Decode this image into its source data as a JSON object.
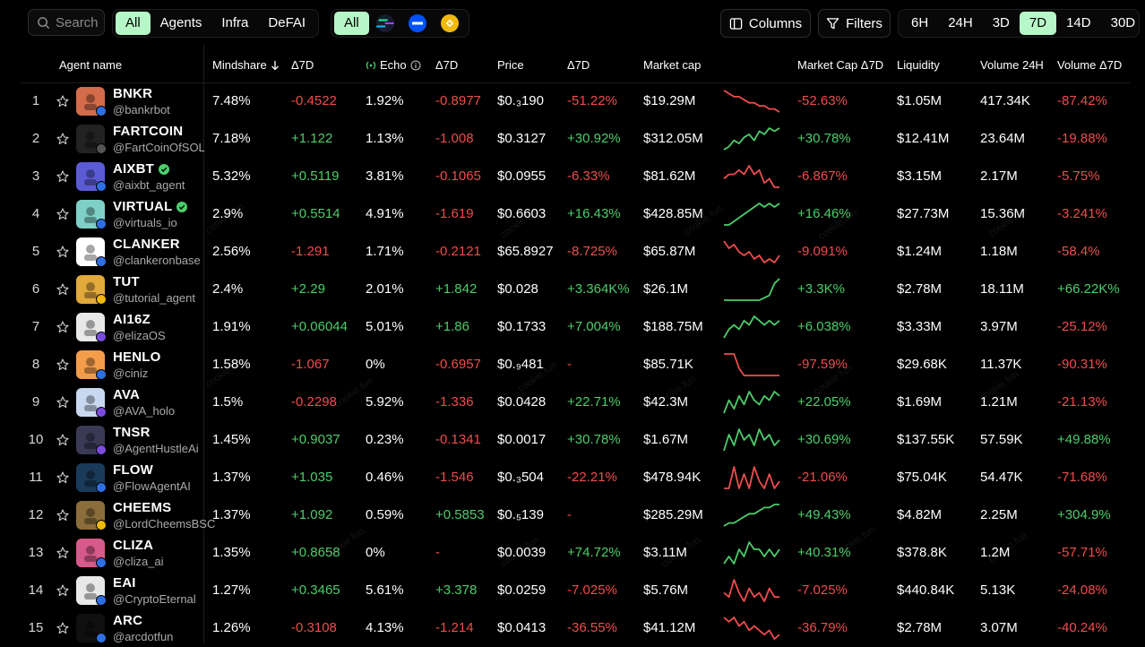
{
  "search": {
    "placeholder": "Search"
  },
  "categories": [
    {
      "label": "All",
      "active": true
    },
    {
      "label": "Agents",
      "active": false
    },
    {
      "label": "Infra",
      "active": false
    },
    {
      "label": "DeFAI",
      "active": false
    }
  ],
  "chains": {
    "all_label": "All",
    "icons": [
      "solana-icon",
      "base-icon",
      "bnb-icon"
    ]
  },
  "toolbar": {
    "columns_label": "Columns",
    "filters_label": "Filters"
  },
  "timeframes": [
    {
      "label": "6H",
      "active": false
    },
    {
      "label": "24H",
      "active": false
    },
    {
      "label": "3D",
      "active": false
    },
    {
      "label": "7D",
      "active": true
    },
    {
      "label": "14D",
      "active": false
    },
    {
      "label": "30D",
      "active": false
    }
  ],
  "headers": {
    "agent_name": "Agent name",
    "mindshare": "Mindshare",
    "mindshare_delta": "Δ7D",
    "echo": "Echo",
    "echo_delta": "Δ7D",
    "price": "Price",
    "price_delta": "Δ7D",
    "market_cap": "Market cap",
    "market_cap_delta": "Market Cap Δ7D",
    "liquidity": "Liquidity",
    "volume": "Volume 24H",
    "volume_delta": "Volume Δ7D"
  },
  "watermark": "cookie.fun",
  "colors": {
    "accent": "#b7f7c7",
    "positive": "#4ccd6a",
    "negative": "#ee4d4d"
  },
  "rows": [
    {
      "rank": "1",
      "name": "BNKR",
      "handle": "@bankrbot",
      "verified": false,
      "mindshare": "7.48%",
      "mindshare_delta": "-0.4522",
      "echo": "1.92%",
      "echo_delta": "-0.8977",
      "price": "$0.₃190",
      "price_delta": "-51.22%",
      "market_cap": "$19.29M",
      "mcap_delta": "-52.63%",
      "liquidity": "$1.05M",
      "volume": "417.34K",
      "volume_delta": "-87.42%",
      "spark": [
        10,
        9,
        8,
        8,
        7,
        6,
        6,
        5,
        5,
        4,
        4,
        3
      ],
      "avatar_color": "#d46b4a",
      "badge_color": "#2f6fe6"
    },
    {
      "rank": "2",
      "name": "FARTCOIN",
      "handle": "@FartCoinOfSOL",
      "verified": false,
      "mindshare": "7.18%",
      "mindshare_delta": "+1.122",
      "echo": "1.13%",
      "echo_delta": "-1.008",
      "price": "$0.3127",
      "price_delta": "+30.92%",
      "market_cap": "$312.05M",
      "mcap_delta": "+30.78%",
      "liquidity": "$12.41M",
      "volume": "23.64M",
      "volume_delta": "-19.88%",
      "spark": [
        3,
        4,
        6,
        5,
        7,
        8,
        6,
        9,
        8,
        10,
        9,
        10
      ],
      "avatar_color": "#222222",
      "badge_color": "#555555"
    },
    {
      "rank": "3",
      "name": "AIXBT",
      "handle": "@aixbt_agent",
      "verified": true,
      "mindshare": "5.32%",
      "mindshare_delta": "+0.5119",
      "echo": "3.81%",
      "echo_delta": "-0.1065",
      "price": "$0.0955",
      "price_delta": "-6.33%",
      "market_cap": "$81.62M",
      "mcap_delta": "-6.867%",
      "liquidity": "$3.15M",
      "volume": "2.17M",
      "volume_delta": "-5.75%",
      "spark": [
        6,
        7,
        7,
        8,
        7,
        9,
        7,
        8,
        5,
        6,
        4,
        4
      ],
      "avatar_color": "#5b5bd6",
      "badge_color": "#2f6fe6"
    },
    {
      "rank": "4",
      "name": "VIRTUAL",
      "handle": "@virtuals_io",
      "verified": true,
      "mindshare": "2.9%",
      "mindshare_delta": "+0.5514",
      "echo": "4.91%",
      "echo_delta": "-1.619",
      "price": "$0.6603",
      "price_delta": "+16.43%",
      "market_cap": "$428.85M",
      "mcap_delta": "+16.46%",
      "liquidity": "$27.73M",
      "volume": "15.36M",
      "volume_delta": "-3.241%",
      "spark": [
        3,
        3,
        4,
        5,
        6,
        7,
        8,
        9,
        8,
        9,
        8,
        9
      ],
      "avatar_color": "#7fd1c8",
      "badge_color": "#2f6fe6"
    },
    {
      "rank": "5",
      "name": "CLANKER",
      "handle": "@clankeronbase",
      "verified": false,
      "mindshare": "2.56%",
      "mindshare_delta": "-1.291",
      "echo": "1.71%",
      "echo_delta": "-0.2121",
      "price": "$65.8927",
      "price_delta": "-8.725%",
      "market_cap": "$65.87M",
      "mcap_delta": "-9.091%",
      "liquidity": "$1.24M",
      "volume": "1.18M",
      "volume_delta": "-58.4%",
      "spark": [
        9,
        7,
        8,
        6,
        5,
        6,
        4,
        5,
        3,
        4,
        3,
        5
      ],
      "avatar_color": "#ffffff",
      "badge_color": "#2f6fe6"
    },
    {
      "rank": "6",
      "name": "TUT",
      "handle": "@tutorial_agent",
      "verified": false,
      "mindshare": "2.4%",
      "mindshare_delta": "+2.29",
      "echo": "2.01%",
      "echo_delta": "+1.842",
      "price": "$0.028",
      "price_delta": "+3.364K%",
      "market_cap": "$26.1M",
      "mcap_delta": "+3.3K%",
      "liquidity": "$2.78M",
      "volume": "18.11M",
      "volume_delta": "+66.22K%",
      "spark": [
        1,
        1,
        1,
        1,
        1,
        1,
        1,
        1,
        2,
        3,
        8,
        10
      ],
      "avatar_color": "#e2a93b",
      "badge_color": "#f0b90b"
    },
    {
      "rank": "7",
      "name": "AI16Z",
      "handle": "@elizaOS",
      "verified": false,
      "mindshare": "1.91%",
      "mindshare_delta": "+0.06044",
      "echo": "5.01%",
      "echo_delta": "+1.86",
      "price": "$0.1733",
      "price_delta": "+7.004%",
      "market_cap": "$188.75M",
      "mcap_delta": "+6.038%",
      "liquidity": "$3.33M",
      "volume": "3.97M",
      "volume_delta": "-25.12%",
      "spark": [
        4,
        6,
        7,
        6,
        8,
        7,
        9,
        8,
        7,
        8,
        7,
        8
      ],
      "avatar_color": "#e8e8e8",
      "badge_color": "#7b4ce0"
    },
    {
      "rank": "8",
      "name": "HENLO",
      "handle": "@ciniz",
      "verified": false,
      "mindshare": "1.58%",
      "mindshare_delta": "-1.067",
      "echo": "0%",
      "echo_delta": "-0.6957",
      "price": "$0.₉481",
      "price_delta": "-",
      "market_cap": "$85.71K",
      "mcap_delta": "-97.59%",
      "liquidity": "$29.68K",
      "volume": "11.37K",
      "volume_delta": "-90.31%",
      "spark": [
        10,
        10,
        10,
        4,
        1,
        1,
        1,
        1,
        1,
        1,
        1,
        1
      ],
      "avatar_color": "#f39c4a",
      "badge_color": "#2f6fe6"
    },
    {
      "rank": "9",
      "name": "AVA",
      "handle": "@AVA_holo",
      "verified": false,
      "mindshare": "1.5%",
      "mindshare_delta": "-0.2298",
      "echo": "5.92%",
      "echo_delta": "-1.336",
      "price": "$0.0428",
      "price_delta": "+22.71%",
      "market_cap": "$42.3M",
      "mcap_delta": "+22.05%",
      "liquidity": "$1.69M",
      "volume": "1.21M",
      "volume_delta": "-21.13%",
      "spark": [
        4,
        7,
        5,
        8,
        6,
        9,
        7,
        6,
        8,
        7,
        9,
        8
      ],
      "avatar_color": "#c8d8f0",
      "badge_color": "#7b4ce0"
    },
    {
      "rank": "10",
      "name": "TNSR",
      "handle": "@AgentHustleAi",
      "verified": false,
      "mindshare": "1.45%",
      "mindshare_delta": "+0.9037",
      "echo": "0.23%",
      "echo_delta": "-0.1341",
      "price": "$0.0017",
      "price_delta": "+30.78%",
      "market_cap": "$1.67M",
      "mcap_delta": "+30.69%",
      "liquidity": "$137.55K",
      "volume": "57.59K",
      "volume_delta": "+49.88%",
      "spark": [
        5,
        8,
        6,
        9,
        7,
        8,
        6,
        9,
        7,
        8,
        6,
        7
      ],
      "avatar_color": "#3a3a55",
      "badge_color": "#7b4ce0"
    },
    {
      "rank": "11",
      "name": "FLOW",
      "handle": "@FlowAgentAI",
      "verified": false,
      "mindshare": "1.37%",
      "mindshare_delta": "+1.035",
      "echo": "0.46%",
      "echo_delta": "-1.546",
      "price": "$0.₃504",
      "price_delta": "-22.21%",
      "market_cap": "$478.94K",
      "mcap_delta": "-21.06%",
      "liquidity": "$75.04K",
      "volume": "54.47K",
      "volume_delta": "-71.68%",
      "spark": [
        6,
        6,
        9,
        6,
        8,
        6,
        9,
        7,
        6,
        8,
        6,
        7
      ],
      "avatar_color": "#1a3a5a",
      "badge_color": "#2f6fe6"
    },
    {
      "rank": "12",
      "name": "CHEEMS",
      "handle": "@LordCheemsBSC",
      "verified": false,
      "mindshare": "1.37%",
      "mindshare_delta": "+1.092",
      "echo": "0.59%",
      "echo_delta": "+0.5853",
      "price": "$0.₅139",
      "price_delta": "-",
      "market_cap": "$285.29M",
      "mcap_delta": "+49.43%",
      "liquidity": "$4.82M",
      "volume": "2.25M",
      "volume_delta": "+304.9%",
      "spark": [
        2,
        3,
        3,
        4,
        5,
        6,
        6,
        7,
        8,
        8,
        9,
        9
      ],
      "avatar_color": "#8a6d3b",
      "badge_color": "#f0b90b"
    },
    {
      "rank": "13",
      "name": "CLIZA",
      "handle": "@cliza_ai",
      "verified": false,
      "mindshare": "1.35%",
      "mindshare_delta": "+0.8658",
      "echo": "0%",
      "echo_delta": "-",
      "price": "$0.0039",
      "price_delta": "+74.72%",
      "market_cap": "$3.11M",
      "mcap_delta": "+40.31%",
      "liquidity": "$378.8K",
      "volume": "1.2M",
      "volume_delta": "-57.71%",
      "spark": [
        4,
        5,
        4,
        6,
        5,
        7,
        6,
        6,
        5,
        6,
        5,
        6
      ],
      "avatar_color": "#d65a8a",
      "badge_color": "#2f6fe6"
    },
    {
      "rank": "14",
      "name": "EAI",
      "handle": "@CryptoEternal",
      "verified": false,
      "mindshare": "1.27%",
      "mindshare_delta": "+0.3465",
      "echo": "5.61%",
      "echo_delta": "+3.378",
      "price": "$0.0259",
      "price_delta": "-7.025%",
      "market_cap": "$5.76M",
      "mcap_delta": "-7.025%",
      "liquidity": "$440.84K",
      "volume": "5.13K",
      "volume_delta": "-24.08%",
      "spark": [
        6,
        5,
        9,
        6,
        4,
        7,
        5,
        6,
        4,
        7,
        5,
        5
      ],
      "avatar_color": "#e8e8e8",
      "badge_color": "#2f6fe6"
    },
    {
      "rank": "15",
      "name": "ARC",
      "handle": "@arcdotfun",
      "verified": false,
      "mindshare": "1.26%",
      "mindshare_delta": "-0.3108",
      "echo": "4.13%",
      "echo_delta": "-1.214",
      "price": "$0.0413",
      "price_delta": "-36.55%",
      "market_cap": "$41.12M",
      "mcap_delta": "-36.79%",
      "liquidity": "$2.78M",
      "volume": "3.07M",
      "volume_delta": "-40.24%",
      "spark": [
        8,
        7,
        8,
        6,
        7,
        5,
        6,
        5,
        4,
        5,
        3,
        4
      ],
      "avatar_color": "#101010",
      "badge_color": "#2f6fe6"
    }
  ]
}
